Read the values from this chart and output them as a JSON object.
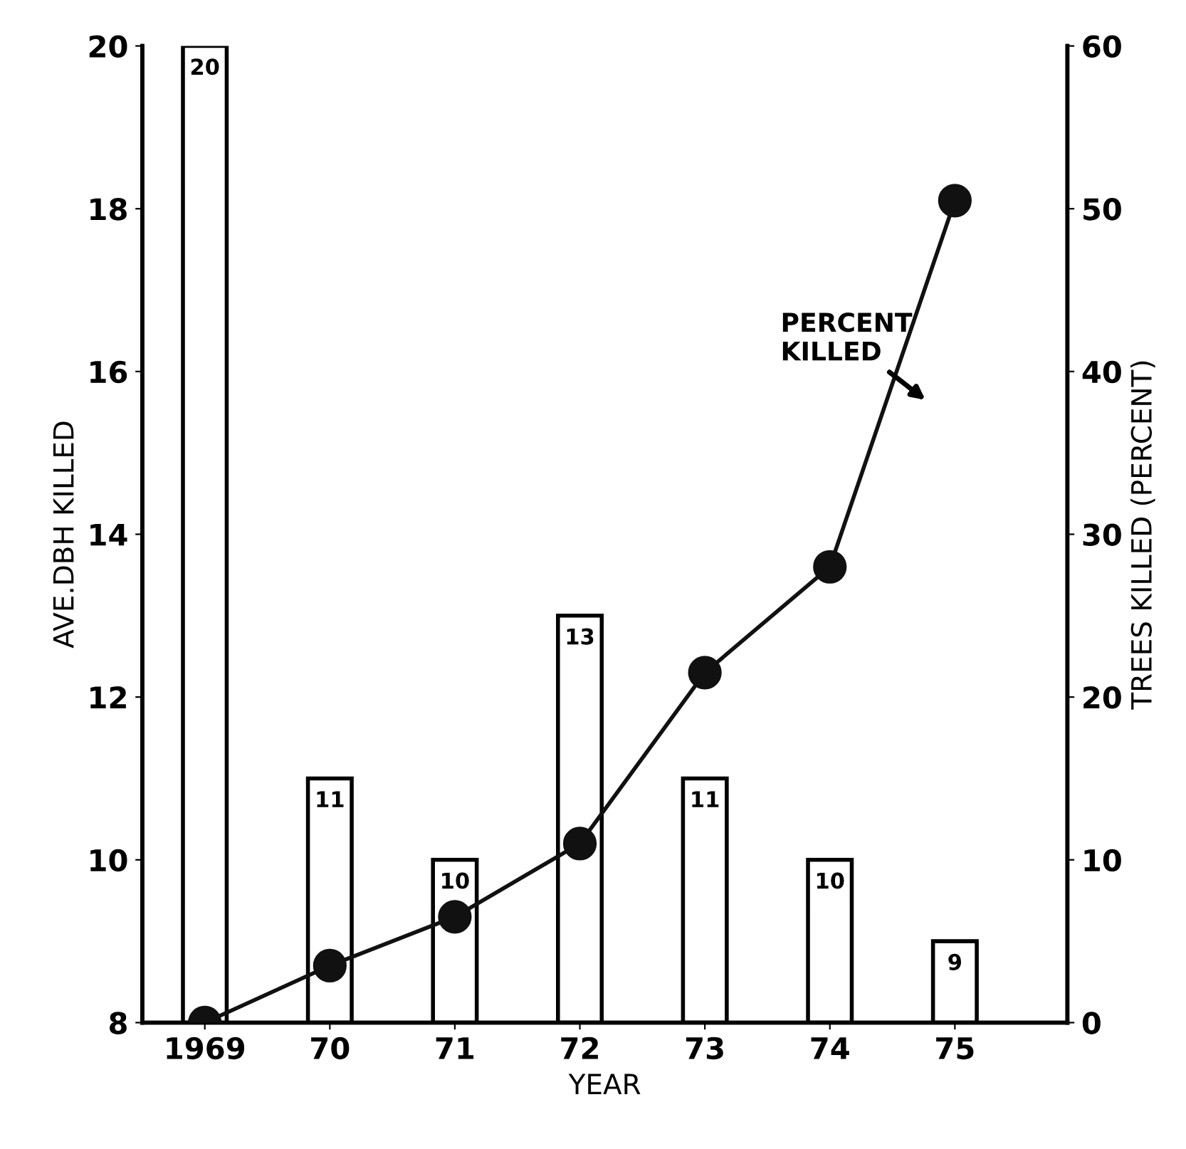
{
  "chart_data": {
    "type": "bar",
    "xlabel": "YEAR",
    "ylabel": "AVE.DBH KILLED",
    "y2label": "TREES KILLED (PERCENT)",
    "categories": [
      "1969",
      "70",
      "71",
      "72",
      "73",
      "74",
      "75"
    ],
    "series": [
      {
        "color": "#ffffff",
        "values": [
          20,
          11,
          10,
          13,
          11,
          10,
          9
        ],
        "data_labels": true
      },
      {
        "type": "line",
        "axis": "y2",
        "color": "#111111",
        "marker": "circle",
        "line_style": "solid",
        "values": [
          0,
          3.5,
          6.5,
          11,
          21.5,
          28,
          50.5
        ]
      }
    ],
    "ylim": [
      8,
      20
    ],
    "yticks": [
      8,
      10,
      12,
      14,
      16,
      18,
      20
    ],
    "y2lim": [
      0,
      60
    ],
    "y2ticks": [
      0,
      10,
      20,
      30,
      40,
      50,
      60
    ],
    "grid": false,
    "legend": false,
    "annotations": [
      "PERCENT\nKILLED"
    ]
  }
}
